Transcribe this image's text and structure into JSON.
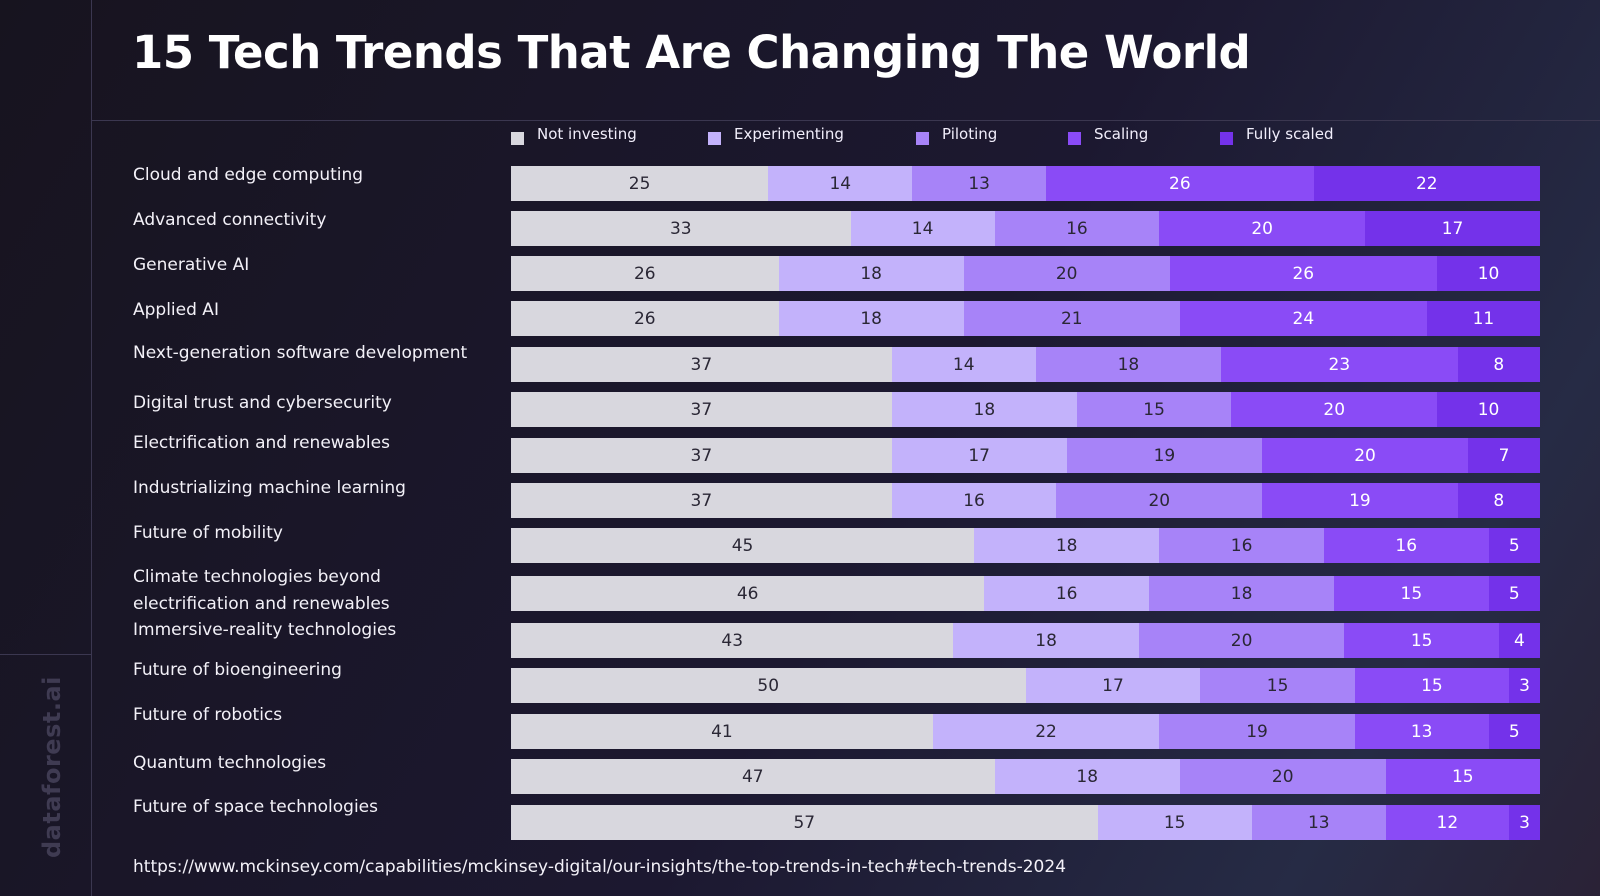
{
  "title": "15 Tech Trends That Are Changing The World",
  "brand": "dataforest.ai",
  "source": "https://www.mckinsey.com/capabilities/mckinsey-digital/our-insights/the-top-trends-in-tech#tech-trends-2024",
  "colors": {
    "not_investing": "#d8d7de",
    "experimenting": "#c3b2fb",
    "piloting": "#a783f8",
    "scaling": "#8a4bf6",
    "fully_scaled": "#7432ea",
    "text_dark": "#2a2735",
    "text_light": "#ffffff"
  },
  "chart_data": {
    "type": "bar",
    "orientation": "horizontal",
    "stacked": true,
    "title": "15 Tech Trends That Are Changing The World",
    "legend_position": "top",
    "categories": [
      "Cloud and edge computing",
      "Advanced connectivity",
      "Generative  AI",
      "Applied AI",
      "Next-generation software development",
      "Digital trust and cybersecurity",
      "Electrification and renewables",
      "Industrializing machine learning",
      "Future of mobility",
      "Climate technologies beyond electrification and renewables",
      "Immersive-reality technologies",
      "Future of bioengineering",
      "Future of robotics",
      "Quantum technologies",
      "Future of space technologies"
    ],
    "series": [
      {
        "name": "Not investing",
        "values": [
          25,
          33,
          26,
          26,
          37,
          37,
          37,
          37,
          45,
          46,
          43,
          50,
          41,
          47,
          57
        ]
      },
      {
        "name": "Experimenting",
        "values": [
          14,
          14,
          18,
          18,
          14,
          18,
          17,
          16,
          18,
          16,
          18,
          17,
          22,
          18,
          15
        ]
      },
      {
        "name": "Piloting",
        "values": [
          13,
          16,
          20,
          21,
          18,
          15,
          19,
          20,
          16,
          18,
          20,
          15,
          19,
          20,
          13
        ]
      },
      {
        "name": "Scaling",
        "values": [
          26,
          20,
          26,
          24,
          23,
          20,
          20,
          19,
          16,
          15,
          15,
          15,
          13,
          15,
          12
        ]
      },
      {
        "name": "Fully scaled",
        "values": [
          22,
          17,
          10,
          11,
          8,
          10,
          7,
          8,
          5,
          5,
          4,
          3,
          5,
          0,
          3
        ]
      }
    ]
  }
}
